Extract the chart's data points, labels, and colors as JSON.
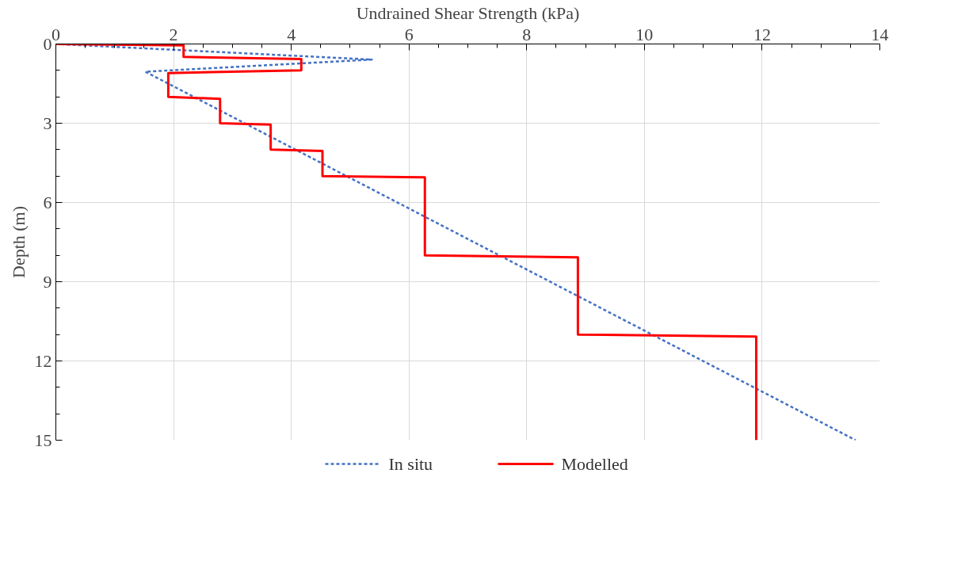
{
  "chart_data": {
    "type": "line",
    "xlabel": "Undrained Shear Strength (kPa)",
    "ylabel": "Depth (m)",
    "xlim": [
      0,
      14
    ],
    "xticks": [
      0,
      2,
      4,
      6,
      8,
      10,
      12,
      14
    ],
    "ylim": [
      15,
      0
    ],
    "yticks": [
      0,
      3,
      6,
      9,
      12,
      15
    ],
    "grid": true,
    "legend": "bottom",
    "marker": "none",
    "series": [
      {
        "name": "In situ",
        "color": "#4472c4",
        "line_style": "dashed",
        "x": [
          0,
          5.37,
          1.52,
          13.59
        ],
        "values": [
          0,
          0.59,
          1.05,
          15
        ]
      },
      {
        "name": "Modelled",
        "color": "#ff0000",
        "line_style": "solid",
        "x": [
          0,
          2.17,
          2.17,
          4.17,
          4.17,
          1.91,
          1.91,
          2.79,
          2.79,
          3.65,
          3.65,
          4.53,
          4.53,
          6.27,
          6.27,
          8.87,
          8.87,
          11.9,
          11.9
        ],
        "values": [
          0,
          0.05,
          0.49,
          0.57,
          1.0,
          1.1,
          2.0,
          2.08,
          3.0,
          3.05,
          4.0,
          4.05,
          5.0,
          5.05,
          8.0,
          8.08,
          11.0,
          11.08,
          15
        ]
      }
    ]
  }
}
